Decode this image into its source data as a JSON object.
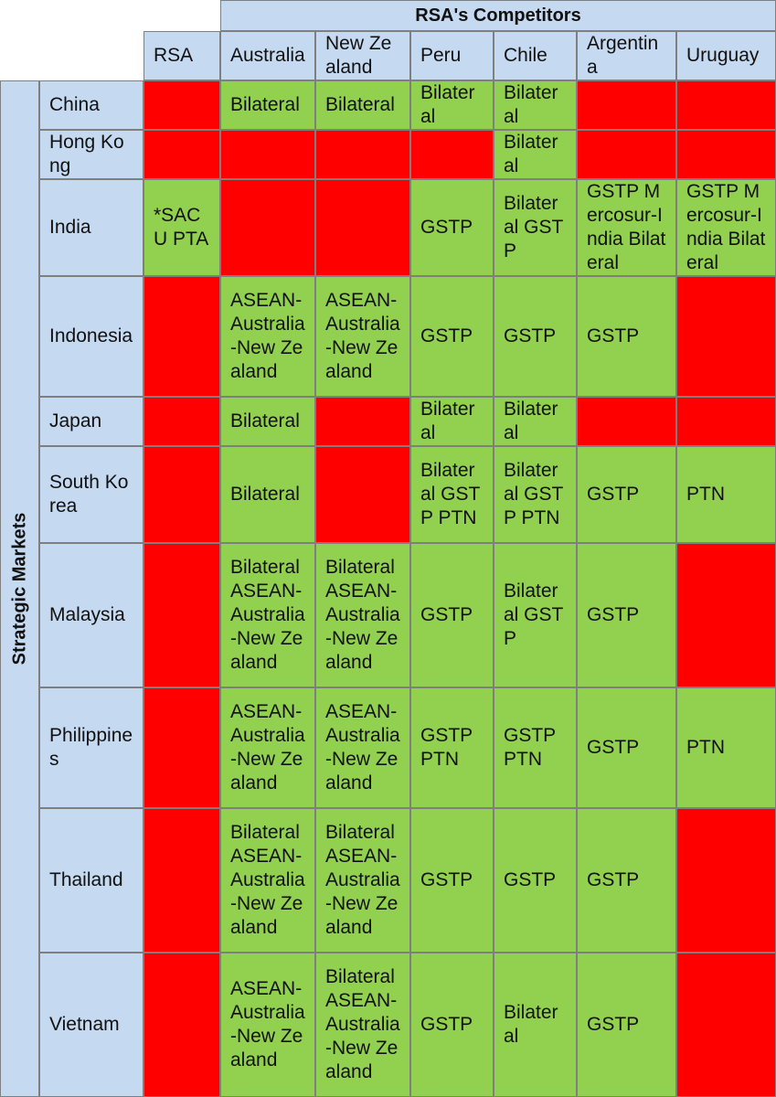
{
  "banner": "RSA's Competitors",
  "side_label": "Strategic Markets",
  "columns": [
    "RSA",
    "Australia",
    "New Zealand",
    "Peru",
    "Chile",
    "Argentina",
    "Uruguay"
  ],
  "colors": {
    "header": "#c5d9f1",
    "green": "#92d050",
    "red": "#ff0000"
  },
  "rows": [
    {
      "market": "China",
      "cells": [
        {
          "text": "",
          "status": "red"
        },
        {
          "text": "Bilateral",
          "status": "green"
        },
        {
          "text": "Bilateral",
          "status": "green"
        },
        {
          "text": "Bilateral",
          "status": "green"
        },
        {
          "text": "Bilateral",
          "status": "green"
        },
        {
          "text": "",
          "status": "red"
        },
        {
          "text": "",
          "status": "red"
        }
      ]
    },
    {
      "market": "Hong Kong",
      "cells": [
        {
          "text": "",
          "status": "red"
        },
        {
          "text": "",
          "status": "red"
        },
        {
          "text": "",
          "status": "red"
        },
        {
          "text": "",
          "status": "red"
        },
        {
          "text": "Bilateral",
          "status": "green"
        },
        {
          "text": "",
          "status": "red"
        },
        {
          "text": "",
          "status": "red"
        }
      ]
    },
    {
      "market": "India",
      "cells": [
        {
          "text": "*SACU PTA",
          "status": "green"
        },
        {
          "text": "",
          "status": "red"
        },
        {
          "text": "",
          "status": "red"
        },
        {
          "text": "GSTP",
          "status": "green"
        },
        {
          "text": "Bilateral GSTP",
          "status": "green"
        },
        {
          "text": "GSTP Mercosur-India Bilateral",
          "status": "green"
        },
        {
          "text": "GSTP Mercosur-India Bilateral",
          "status": "green"
        }
      ]
    },
    {
      "market": "Indonesia",
      "cells": [
        {
          "text": "",
          "status": "red"
        },
        {
          "text": "ASEAN-Australia-New Zealand",
          "status": "green"
        },
        {
          "text": "ASEAN-Australia-New Zealand",
          "status": "green"
        },
        {
          "text": "GSTP",
          "status": "green"
        },
        {
          "text": "GSTP",
          "status": "green"
        },
        {
          "text": "GSTP",
          "status": "green"
        },
        {
          "text": "",
          "status": "red"
        }
      ]
    },
    {
      "market": "Japan",
      "cells": [
        {
          "text": "",
          "status": "red"
        },
        {
          "text": "Bilateral",
          "status": "green"
        },
        {
          "text": "",
          "status": "red"
        },
        {
          "text": "Bilateral",
          "status": "green"
        },
        {
          "text": "Bilateral",
          "status": "green"
        },
        {
          "text": "",
          "status": "red"
        },
        {
          "text": "",
          "status": "red"
        }
      ]
    },
    {
      "market": "South Korea",
      "cells": [
        {
          "text": "",
          "status": "red"
        },
        {
          "text": "Bilateral",
          "status": "green"
        },
        {
          "text": "",
          "status": "red"
        },
        {
          "text": "Bilateral GSTP PTN",
          "status": "green"
        },
        {
          "text": "Bilateral GSTP PTN",
          "status": "green"
        },
        {
          "text": "GSTP",
          "status": "green"
        },
        {
          "text": "PTN",
          "status": "green"
        }
      ]
    },
    {
      "market": "Malaysia",
      "cells": [
        {
          "text": "",
          "status": "red"
        },
        {
          "text": "Bilateral ASEAN-Australia-New Zealand",
          "status": "green"
        },
        {
          "text": "Bilateral ASEAN-Australia-New Zealand",
          "status": "green"
        },
        {
          "text": "GSTP",
          "status": "green"
        },
        {
          "text": "Bilateral GSTP",
          "status": "green"
        },
        {
          "text": "GSTP",
          "status": "green"
        },
        {
          "text": "",
          "status": "red"
        }
      ]
    },
    {
      "market": "Philippines",
      "cells": [
        {
          "text": "",
          "status": "red"
        },
        {
          "text": "ASEAN-Australia-New Zealand",
          "status": "green"
        },
        {
          "text": "ASEAN-Australia-New Zealand",
          "status": "green"
        },
        {
          "text": "GSTP PTN",
          "status": "green"
        },
        {
          "text": "GSTP PTN",
          "status": "green"
        },
        {
          "text": "GSTP",
          "status": "green"
        },
        {
          "text": "PTN",
          "status": "green"
        }
      ]
    },
    {
      "market": "Thailand",
      "cells": [
        {
          "text": "",
          "status": "red"
        },
        {
          "text": "Bilateral ASEAN-Australia-New Zealand",
          "status": "green"
        },
        {
          "text": "Bilateral ASEAN-Australia-New Zealand",
          "status": "green"
        },
        {
          "text": "GSTP",
          "status": "green"
        },
        {
          "text": "GSTP",
          "status": "green"
        },
        {
          "text": "GSTP",
          "status": "green"
        },
        {
          "text": "",
          "status": "red"
        }
      ]
    },
    {
      "market": "Vietnam",
      "cells": [
        {
          "text": "",
          "status": "red"
        },
        {
          "text": "ASEAN-Australia-New Zealand",
          "status": "green"
        },
        {
          "text": "Bilateral ASEAN-Australia-New Zealand",
          "status": "green"
        },
        {
          "text": "GSTP",
          "status": "green"
        },
        {
          "text": "Bilateral",
          "status": "green"
        },
        {
          "text": "GSTP",
          "status": "green"
        },
        {
          "text": "",
          "status": "red"
        }
      ]
    }
  ]
}
